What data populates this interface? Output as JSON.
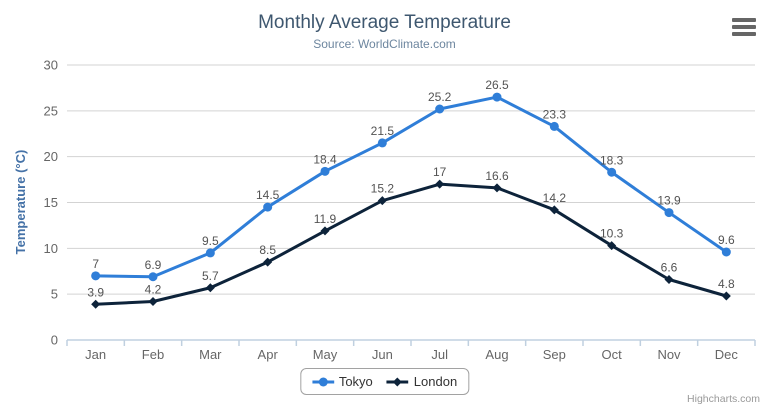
{
  "title": "Monthly Average Temperature",
  "subtitle": "Source: WorldClimate.com",
  "credits": "Highcharts.com",
  "menu_icon": "hamburger-icon",
  "palette": {
    "title": "#3e576f",
    "subtitle": "#6d869f",
    "axis_label": "#666666",
    "axis_title": "#4572a7",
    "gridline": "#d3d3d3",
    "axis_line": "#c0d0e0",
    "data_label": "#535353",
    "legend_text": "#333333",
    "menu_icon_color": "#666666"
  },
  "chart_data": {
    "type": "line",
    "title": "Monthly Average Temperature",
    "subtitle": "Source: WorldClimate.com",
    "categories": [
      "Jan",
      "Feb",
      "Mar",
      "Apr",
      "May",
      "Jun",
      "Jul",
      "Aug",
      "Sep",
      "Oct",
      "Nov",
      "Dec"
    ],
    "series": [
      {
        "name": "Tokyo",
        "color": "#2f7ed8",
        "marker": "circle",
        "values": [
          7,
          6.9,
          9.5,
          14.5,
          18.4,
          21.5,
          25.2,
          26.5,
          23.3,
          18.3,
          13.9,
          9.6
        ]
      },
      {
        "name": "London",
        "color": "#0d233a",
        "marker": "diamond",
        "values": [
          3.9,
          4.2,
          5.7,
          8.5,
          11.9,
          15.2,
          17,
          16.6,
          14.2,
          10.3,
          6.6,
          4.8
        ]
      }
    ],
    "xlabel": "",
    "ylabel": "Temperature (°C)",
    "ylim": [
      0,
      30
    ],
    "ytick_step": 5,
    "grid": true,
    "data_labels": true,
    "legend_position": "bottom"
  }
}
